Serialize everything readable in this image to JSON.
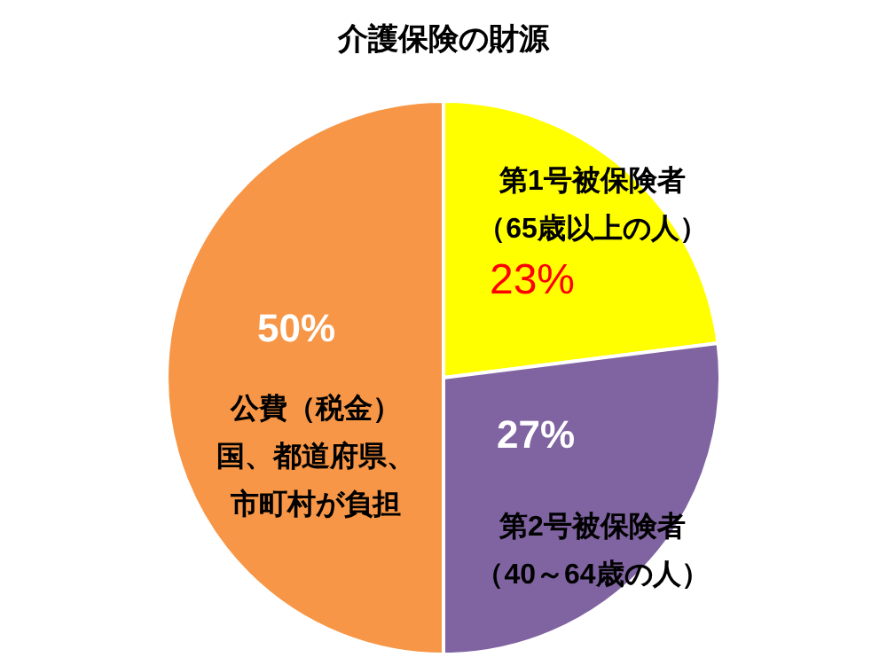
{
  "chart_data": {
    "type": "pie",
    "title": "介護保険の財源",
    "categories": [
      "第1号被保険者（65歳以上の人）",
      "第2号被保険者（40～64歳の人）",
      "公費（税金）国、都道府県、市町村が負担"
    ],
    "values": [
      23,
      27,
      50
    ],
    "colors": [
      "#ffff00",
      "#8064a2",
      "#f79646"
    ],
    "value_labels": [
      "23%",
      "27%",
      "50%"
    ]
  }
}
